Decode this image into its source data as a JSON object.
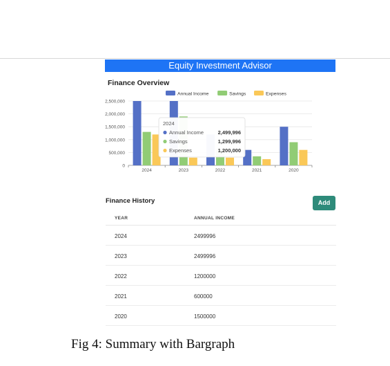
{
  "header": {
    "title": "Equity Investment Advisor"
  },
  "overview": {
    "title": "Finance Overview"
  },
  "chart_data": {
    "type": "bar",
    "categories": [
      "2024",
      "2023",
      "2022",
      "2021",
      "2020"
    ],
    "series": [
      {
        "name": "Annual Income",
        "color": "#5470c6",
        "values": [
          2499996,
          2499996,
          1200000,
          600000,
          1500000
        ]
      },
      {
        "name": "Savings",
        "color": "#91cc75",
        "values": [
          1299996,
          1900000,
          600000,
          350000,
          900000
        ]
      },
      {
        "name": "Expenses",
        "color": "#fac858",
        "values": [
          1200000,
          300000,
          300000,
          240000,
          600000
        ]
      }
    ],
    "y_ticks": [
      "0",
      "500,000",
      "1,000,000",
      "1,500,000",
      "2,000,000",
      "2,500,000"
    ],
    "ylim": [
      0,
      2500000
    ],
    "legend_position": "top",
    "grid": true,
    "tooltip": {
      "title": "2024",
      "rows": [
        {
          "label": "Annual Income",
          "value": "2,499,996",
          "color": "#5470c6"
        },
        {
          "label": "Savings",
          "value": "1,299,996",
          "color": "#91cc75"
        },
        {
          "label": "Expenses",
          "value": "1,200,000",
          "color": "#fac858"
        }
      ]
    }
  },
  "history": {
    "title": "Finance History",
    "add_label": "Add",
    "columns": {
      "year": "YEAR",
      "income": "ANNUAL INCOME"
    },
    "rows": [
      {
        "year": "2024",
        "income": "2499996"
      },
      {
        "year": "2023",
        "income": "2499996"
      },
      {
        "year": "2022",
        "income": "1200000"
      },
      {
        "year": "2021",
        "income": "600000"
      },
      {
        "year": "2020",
        "income": "1500000"
      }
    ]
  },
  "caption": "Fig 4: Summary with Bargraph"
}
